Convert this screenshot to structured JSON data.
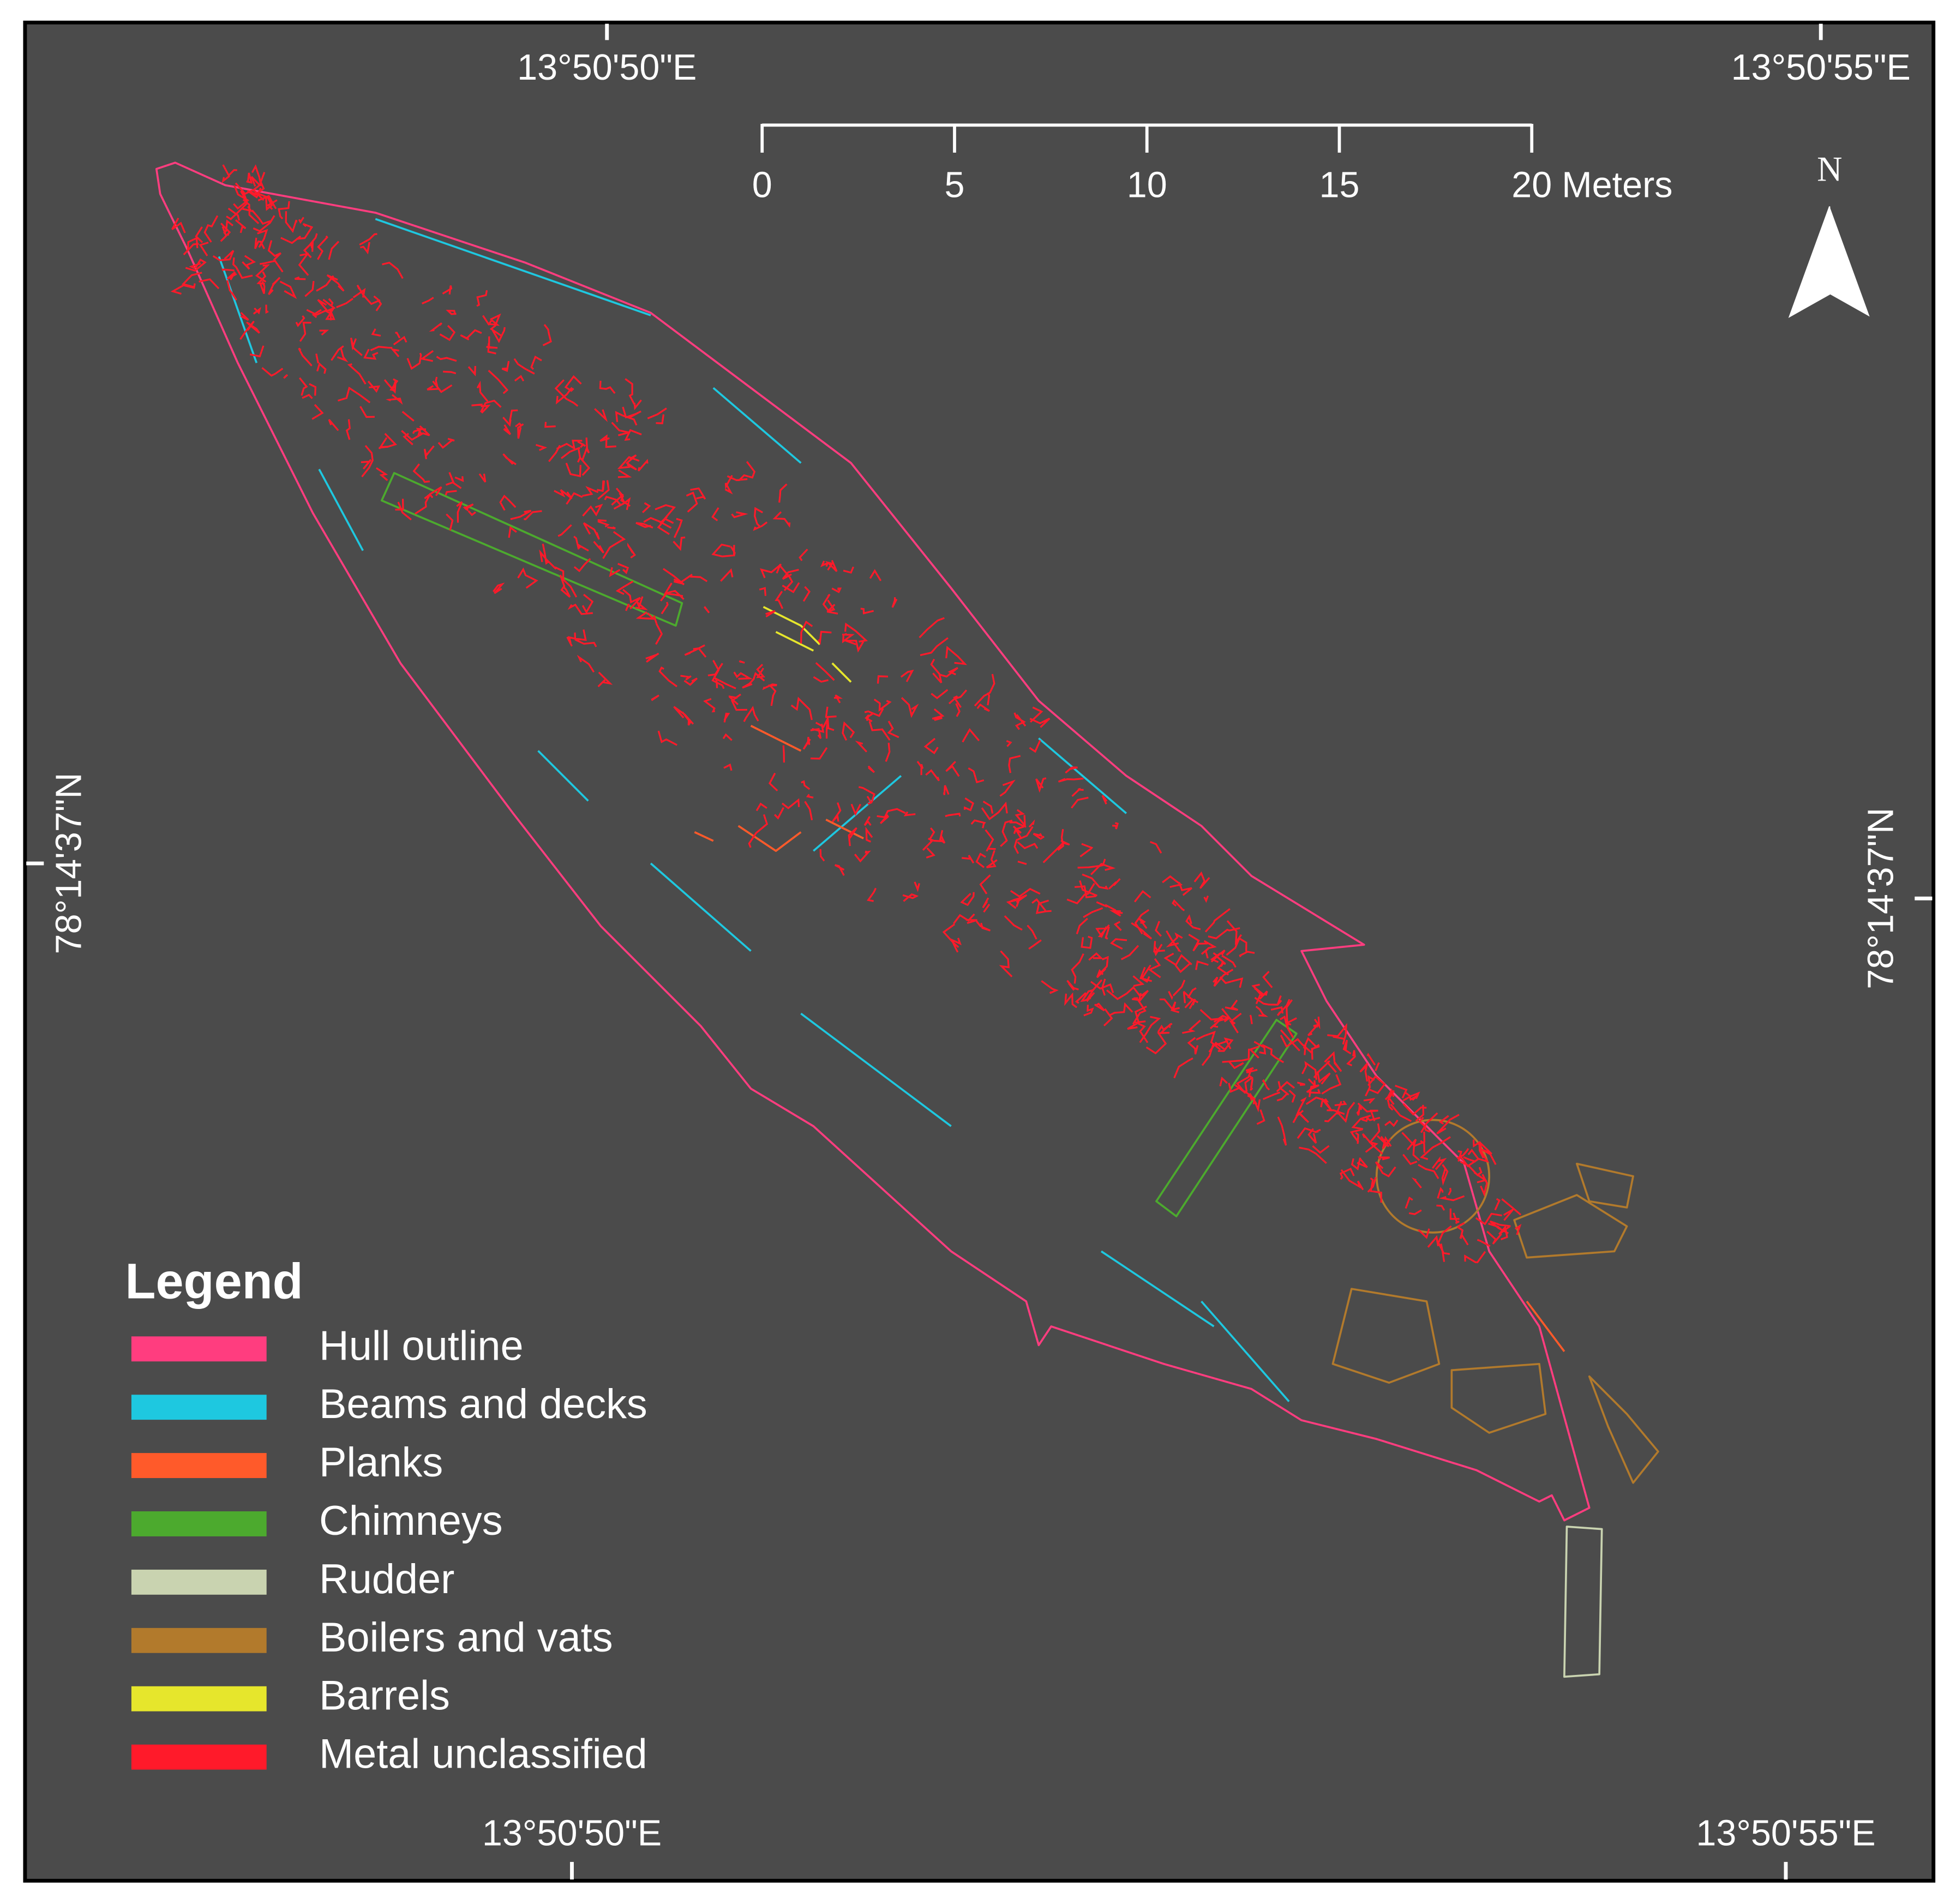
{
  "map": {
    "coordinates": {
      "top": [
        "13°50'50\"E",
        "13°50'55\"E"
      ],
      "bottom": [
        "13°50'50\"E",
        "13°50'55\"E"
      ],
      "left": "78°14'37\"N",
      "right": "78°14'37\"N"
    },
    "scale_bar": {
      "ticks": [
        0,
        5,
        10,
        15,
        20
      ],
      "unit": "Meters"
    },
    "north_arrow": "N",
    "legend": {
      "title": "Legend",
      "items": [
        {
          "name": "Hull outline",
          "color": "#ff3d7f"
        },
        {
          "name": "Beams and decks",
          "color": "#1ec8e0"
        },
        {
          "name": "Planks",
          "color": "#ff5a2a"
        },
        {
          "name": "Chimneys",
          "color": "#4caa2e"
        },
        {
          "name": "Rudder",
          "color": "#c9d3b0"
        },
        {
          "name": "Boilers and vats",
          "color": "#b27a2c"
        },
        {
          "name": "Barrels",
          "color": "#e6e62c"
        },
        {
          "name": "Metal unclassified",
          "color": "#ff1a2a"
        }
      ]
    }
  }
}
